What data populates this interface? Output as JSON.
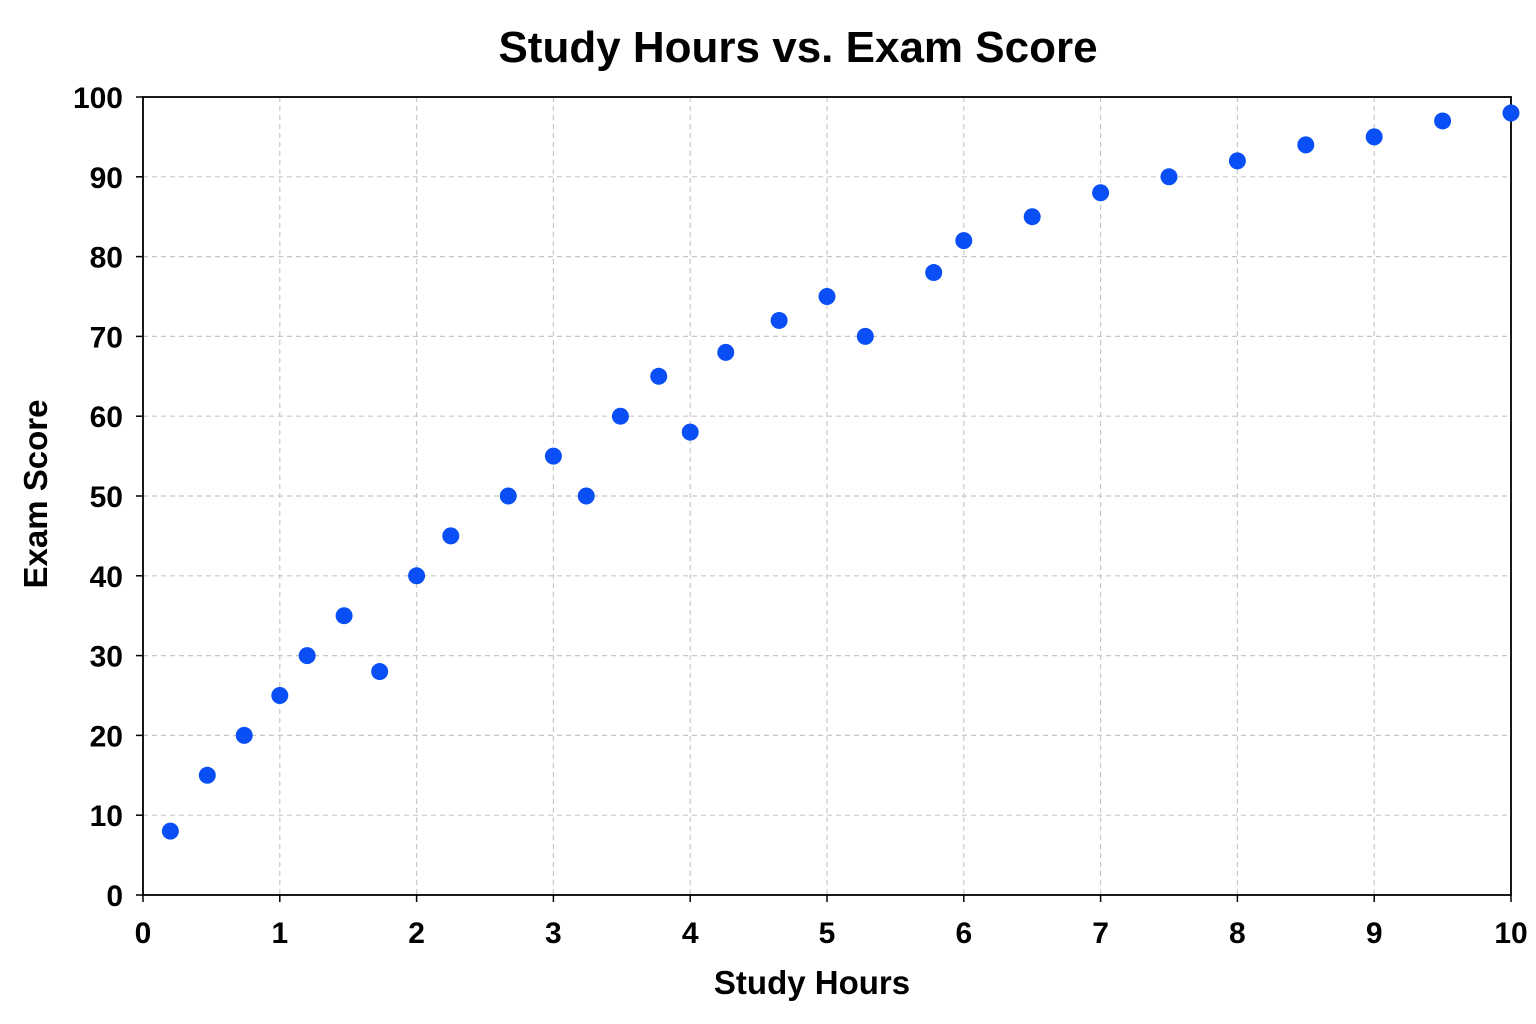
{
  "chart_data": {
    "type": "scatter",
    "title": "Study Hours vs. Exam Score",
    "xlabel": "Study Hours",
    "ylabel": "Exam Score",
    "xlim": [
      0,
      10
    ],
    "ylim": [
      0,
      100
    ],
    "xticks": [
      0,
      1,
      2,
      3,
      4,
      5,
      6,
      7,
      8,
      9,
      10
    ],
    "yticks": [
      0,
      10,
      20,
      30,
      40,
      50,
      60,
      70,
      80,
      90,
      100
    ],
    "grid": true,
    "point_color": "#0a4ff5",
    "series": [
      {
        "x": [
          0.2,
          0.47,
          0.74,
          1.0,
          1.2,
          1.47,
          1.73,
          2.0,
          2.25,
          2.67,
          3.0,
          3.24,
          3.49,
          3.77,
          4.0,
          4.26,
          4.65,
          5.0,
          5.28,
          5.78,
          6.0,
          6.5,
          7.0,
          7.5,
          8.0,
          8.5,
          9.0,
          9.5,
          10.0
        ],
        "y": [
          8,
          15,
          20,
          25,
          30,
          35,
          28,
          40,
          45,
          50,
          55,
          50,
          60,
          65,
          58,
          68,
          72,
          75,
          70,
          78,
          82,
          85,
          88,
          90,
          92,
          94,
          95,
          97,
          98
        ]
      }
    ]
  }
}
